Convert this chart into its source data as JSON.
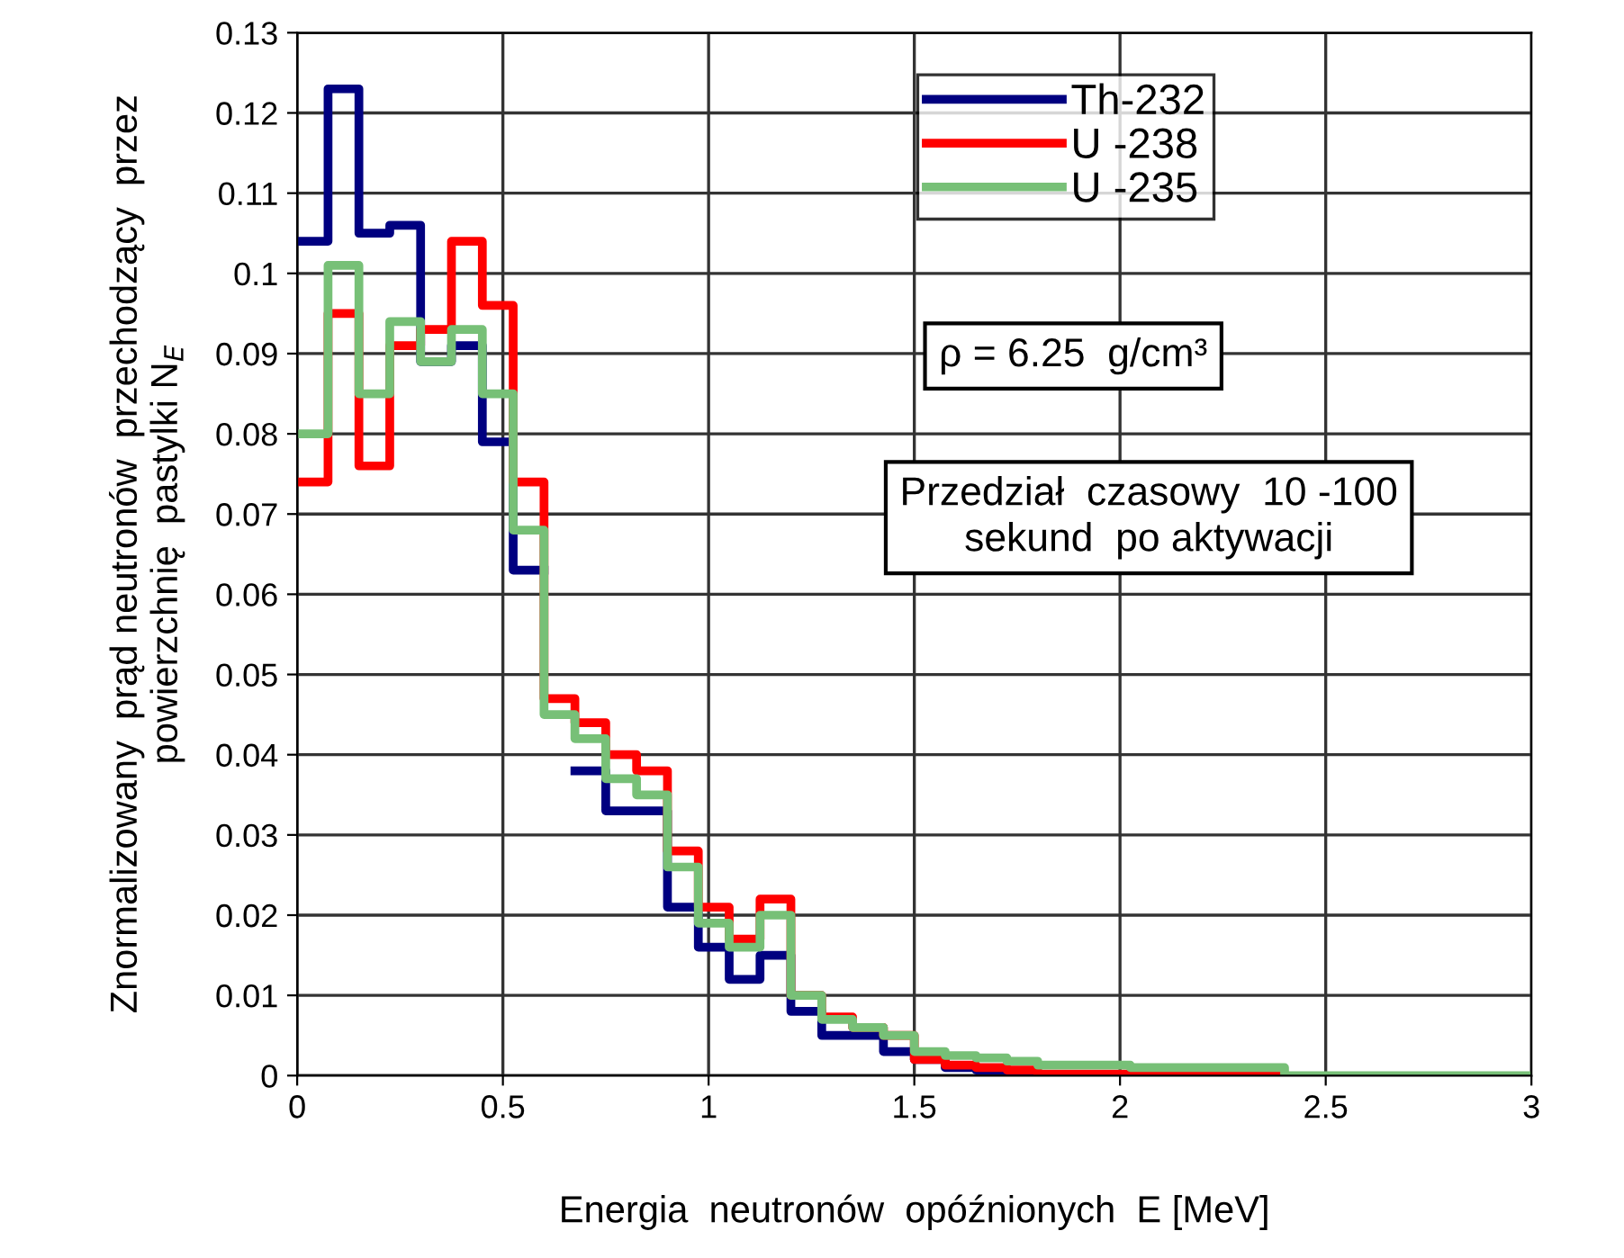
{
  "chart_data": {
    "type": "step",
    "xlabel": "Energia  neutronów  opóźnionych  E [MeV]",
    "ylabel": "Znormalizowany  prąd neutronów  przechodzący  przez\npowierzchnię  pastylki N$_{E}$",
    "xlim": [
      0,
      3
    ],
    "xticks": [
      0,
      0.5,
      1,
      1.5,
      2,
      2.5,
      3
    ],
    "ylim": [
      0,
      0.13
    ],
    "yticks": [
      0,
      0.01,
      0.02,
      0.03,
      0.04,
      0.05,
      0.06,
      0.07,
      0.08,
      0.09,
      0.1,
      0.11,
      0.12,
      0.13
    ],
    "grid": true,
    "legend": "top right",
    "annotations": [
      "ρ = 6.25  g/cm³",
      "Przedział  czasowy  10 -100\nsekund  po aktywacji"
    ],
    "series": [
      {
        "name": "Th-232",
        "color": "#000080",
        "x": [
          0,
          0.075,
          0.15,
          0.225,
          0.3,
          0.375,
          0.45,
          0.525,
          0.6,
          0.675,
          0.75,
          0.825,
          0.9,
          0.975,
          1.05,
          1.125,
          1.2,
          1.275,
          1.35,
          1.425,
          1.5,
          1.575,
          1.65,
          1.725,
          1.8
        ],
        "values": [
          0.104,
          0.123,
          0.105,
          0.106,
          0.089,
          0.091,
          0.079,
          0.063,
          null,
          0.038,
          0.033,
          0.033,
          0.021,
          0.016,
          0.012,
          0.015,
          0.008,
          0.005,
          0.005,
          0.003,
          0.002,
          0.001,
          0.0007,
          0.0005,
          0.0002
        ]
      },
      {
        "name": "U -238",
        "color": "#ff0000",
        "x": [
          0,
          0.075,
          0.15,
          0.225,
          0.3,
          0.375,
          0.45,
          0.525,
          0.6,
          0.675,
          0.75,
          0.825,
          0.9,
          0.975,
          1.05,
          1.125,
          1.2,
          1.275,
          1.35,
          1.425,
          1.5,
          1.575,
          1.65,
          1.725,
          1.8,
          1.875,
          1.95,
          2.025,
          2.1,
          2.175,
          2.25,
          2.325,
          2.4
        ],
        "values": [
          0.074,
          0.095,
          0.076,
          0.091,
          0.093,
          0.104,
          0.096,
          0.074,
          0.047,
          0.044,
          0.04,
          0.038,
          0.028,
          0.021,
          0.017,
          0.022,
          0.01,
          0.0073,
          0.006,
          0.005,
          0.002,
          0.0013,
          0.001,
          0.0007,
          0.0002,
          0.0002,
          0.0002,
          0.0002,
          0.0002,
          0.0002,
          0.0002,
          0.0002,
          0
        ]
      },
      {
        "name": "U -235",
        "color": "#77c077",
        "x": [
          0,
          0.075,
          0.15,
          0.225,
          0.3,
          0.375,
          0.45,
          0.525,
          0.6,
          0.675,
          0.75,
          0.825,
          0.9,
          0.975,
          1.05,
          1.125,
          1.2,
          1.275,
          1.35,
          1.425,
          1.5,
          1.575,
          1.65,
          1.725,
          1.8,
          1.875,
          1.95,
          2.025,
          2.1,
          2.175,
          2.25,
          2.325,
          2.4,
          3
        ],
        "values": [
          0.08,
          0.101,
          0.085,
          0.094,
          0.089,
          0.093,
          0.085,
          0.068,
          0.045,
          0.042,
          0.037,
          0.035,
          0.026,
          0.019,
          0.016,
          0.02,
          0.01,
          0.007,
          0.006,
          0.005,
          0.003,
          0.0025,
          0.0022,
          0.0018,
          0.0013,
          0.0013,
          0.0013,
          0.001,
          0.001,
          0.001,
          0.001,
          0.001,
          0,
          0
        ]
      }
    ]
  }
}
